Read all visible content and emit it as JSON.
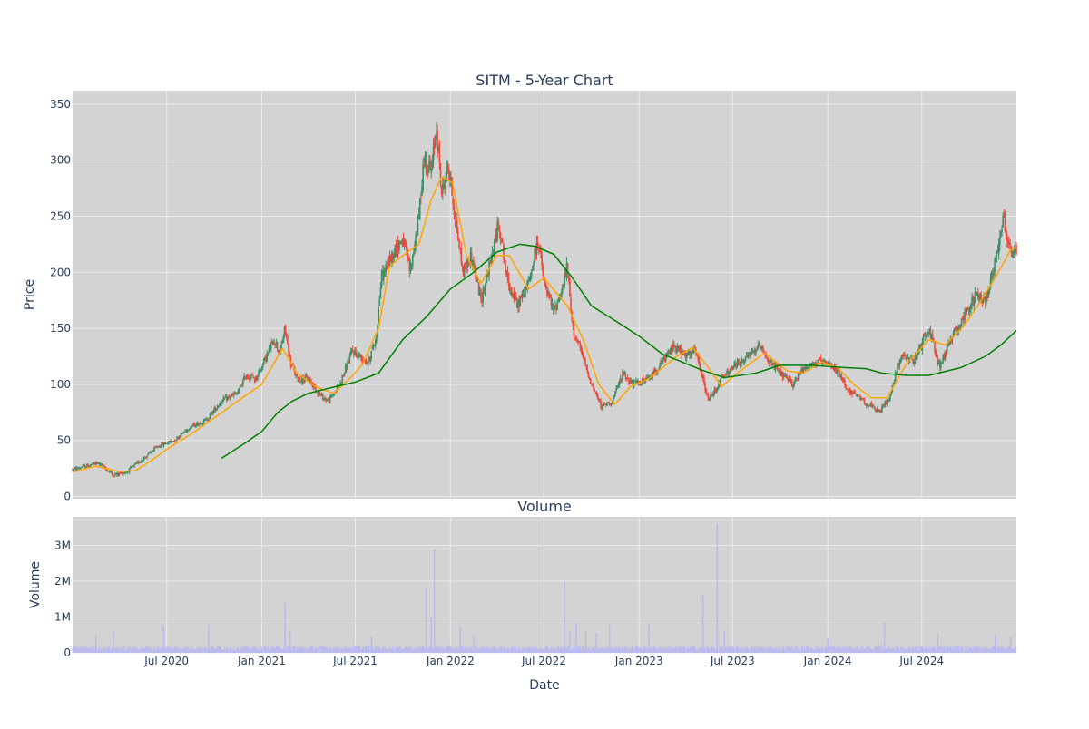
{
  "colors": {
    "page_bg": "#ffffff",
    "plot_bg": "#d3d3d3",
    "grid": "#ebebeb",
    "text": "#2a3f5f",
    "candle_up": "#3d8f68",
    "candle_down": "#ef4a3c",
    "ma_short": "#ffa500",
    "ma_long": "#008000",
    "volume": "#b8b8f0"
  },
  "chart_data": [
    {
      "type": "candlestick",
      "title": "SITM - 5-Year Chart",
      "ylabel": "Price",
      "xlabel": "",
      "ylim": [
        -2,
        362
      ],
      "yticks": [
        0,
        50,
        100,
        150,
        200,
        250,
        300,
        350
      ],
      "xlim": [
        "2020-01-01",
        "2024-12-31"
      ],
      "xticks": [
        "2020-07-01",
        "2021-01-01",
        "2021-07-01",
        "2022-01-01",
        "2022-07-01",
        "2023-01-01",
        "2023-07-01",
        "2024-01-01",
        "2024-07-01"
      ],
      "grid": true,
      "legend": "none",
      "price_path": [
        [
          "2020-01-02",
          24
        ],
        [
          "2020-02-20",
          30
        ],
        [
          "2020-03-20",
          19
        ],
        [
          "2020-04-15",
          22
        ],
        [
          "2020-05-20",
          35
        ],
        [
          "2020-06-15",
          45
        ],
        [
          "2020-07-15",
          50
        ],
        [
          "2020-08-15",
          62
        ],
        [
          "2020-09-15",
          68
        ],
        [
          "2020-10-15",
          85
        ],
        [
          "2020-11-15",
          92
        ],
        [
          "2020-12-01",
          108
        ],
        [
          "2020-12-20",
          105
        ],
        [
          "2021-01-10",
          125
        ],
        [
          "2021-01-25",
          140
        ],
        [
          "2021-02-05",
          128
        ],
        [
          "2021-02-15",
          150
        ],
        [
          "2021-02-25",
          120
        ],
        [
          "2021-03-10",
          105
        ],
        [
          "2021-04-01",
          105
        ],
        [
          "2021-04-25",
          90
        ],
        [
          "2021-05-10",
          85
        ],
        [
          "2021-06-01",
          100
        ],
        [
          "2021-06-25",
          130
        ],
        [
          "2021-07-25",
          120
        ],
        [
          "2021-08-10",
          140
        ],
        [
          "2021-08-20",
          195
        ],
        [
          "2021-09-15",
          220
        ],
        [
          "2021-10-01",
          230
        ],
        [
          "2021-10-15",
          200
        ],
        [
          "2021-11-01",
          250
        ],
        [
          "2021-11-10",
          300
        ],
        [
          "2021-11-25",
          290
        ],
        [
          "2021-12-05",
          330
        ],
        [
          "2021-12-15",
          270
        ],
        [
          "2021-12-28",
          295
        ],
        [
          "2022-01-10",
          250
        ],
        [
          "2022-01-25",
          200
        ],
        [
          "2022-02-10",
          215
        ],
        [
          "2022-03-01",
          175
        ],
        [
          "2022-03-20",
          210
        ],
        [
          "2022-04-05",
          245
        ],
        [
          "2022-04-20",
          195
        ],
        [
          "2022-05-10",
          170
        ],
        [
          "2022-06-01",
          190
        ],
        [
          "2022-06-20",
          230
        ],
        [
          "2022-07-01",
          190
        ],
        [
          "2022-07-20",
          165
        ],
        [
          "2022-08-05",
          185
        ],
        [
          "2022-08-15",
          205
        ],
        [
          "2022-08-25",
          150
        ],
        [
          "2022-09-10",
          130
        ],
        [
          "2022-10-01",
          100
        ],
        [
          "2022-10-20",
          80
        ],
        [
          "2022-11-10",
          85
        ],
        [
          "2022-12-01",
          110
        ],
        [
          "2022-12-20",
          100
        ],
        [
          "2023-01-20",
          105
        ],
        [
          "2023-02-15",
          120
        ],
        [
          "2023-03-10",
          135
        ],
        [
          "2023-04-01",
          125
        ],
        [
          "2023-04-20",
          130
        ],
        [
          "2023-05-15",
          85
        ],
        [
          "2023-06-10",
          105
        ],
        [
          "2023-07-01",
          115
        ],
        [
          "2023-08-01",
          125
        ],
        [
          "2023-08-25",
          135
        ],
        [
          "2023-09-10",
          120
        ],
        [
          "2023-10-01",
          110
        ],
        [
          "2023-10-25",
          100
        ],
        [
          "2023-11-15",
          115
        ],
        [
          "2023-12-15",
          120
        ],
        [
          "2024-01-15",
          115
        ],
        [
          "2024-02-10",
          95
        ],
        [
          "2024-03-10",
          85
        ],
        [
          "2024-04-10",
          75
        ],
        [
          "2024-05-01",
          90
        ],
        [
          "2024-05-20",
          125
        ],
        [
          "2024-06-15",
          120
        ],
        [
          "2024-07-15",
          150
        ],
        [
          "2024-08-05",
          115
        ],
        [
          "2024-08-25",
          140
        ],
        [
          "2024-09-20",
          160
        ],
        [
          "2024-10-15",
          180
        ],
        [
          "2024-11-01",
          175
        ],
        [
          "2024-11-20",
          210
        ],
        [
          "2024-12-05",
          250
        ],
        [
          "2024-12-15",
          225
        ],
        [
          "2024-12-31",
          215
        ]
      ],
      "series": [
        {
          "type": "line",
          "color": "#ffa500",
          "points": [
            [
              "2020-01-02",
              22
            ],
            [
              "2020-02-15",
              27
            ],
            [
              "2020-04-01",
              22
            ],
            [
              "2020-05-01",
              23
            ],
            [
              "2020-06-01",
              32
            ],
            [
              "2020-07-01",
              42
            ],
            [
              "2020-08-15",
              55
            ],
            [
              "2020-10-01",
              70
            ],
            [
              "2020-11-15",
              85
            ],
            [
              "2021-01-01",
              100
            ],
            [
              "2021-02-10",
              132
            ],
            [
              "2021-03-10",
              110
            ],
            [
              "2021-04-15",
              98
            ],
            [
              "2021-05-20",
              92
            ],
            [
              "2021-06-20",
              105
            ],
            [
              "2021-07-15",
              118
            ],
            [
              "2021-08-15",
              150
            ],
            [
              "2021-09-05",
              205
            ],
            [
              "2021-10-01",
              215
            ],
            [
              "2021-11-01",
              225
            ],
            [
              "2021-11-25",
              265
            ],
            [
              "2021-12-15",
              285
            ],
            [
              "2022-01-05",
              280
            ],
            [
              "2022-02-01",
              215
            ],
            [
              "2022-03-01",
              190
            ],
            [
              "2022-04-01",
              215
            ],
            [
              "2022-04-25",
              215
            ],
            [
              "2022-06-01",
              185
            ],
            [
              "2022-07-01",
              195
            ],
            [
              "2022-08-15",
              170
            ],
            [
              "2022-09-15",
              140
            ],
            [
              "2022-10-15",
              100
            ],
            [
              "2022-11-15",
              82
            ],
            [
              "2022-12-15",
              98
            ],
            [
              "2023-01-20",
              105
            ],
            [
              "2023-03-15",
              125
            ],
            [
              "2023-04-15",
              133
            ],
            [
              "2023-05-15",
              115
            ],
            [
              "2023-06-10",
              98
            ],
            [
              "2023-07-15",
              112
            ],
            [
              "2023-09-01",
              128
            ],
            [
              "2023-10-15",
              112
            ],
            [
              "2023-11-15",
              110
            ],
            [
              "2023-12-20",
              120
            ],
            [
              "2024-01-20",
              115
            ],
            [
              "2024-02-20",
              100
            ],
            [
              "2024-03-25",
              88
            ],
            [
              "2024-04-25",
              88
            ],
            [
              "2024-06-01",
              118
            ],
            [
              "2024-07-15",
              140
            ],
            [
              "2024-08-15",
              135
            ],
            [
              "2024-09-20",
              152
            ],
            [
              "2024-10-20",
              172
            ],
            [
              "2024-11-20",
              195
            ],
            [
              "2024-12-20",
              220
            ],
            [
              "2024-12-31",
              222
            ]
          ]
        },
        {
          "type": "line",
          "color": "#008000",
          "points": [
            [
              "2020-10-15",
              34
            ],
            [
              "2020-12-01",
              48
            ],
            [
              "2021-01-01",
              58
            ],
            [
              "2021-02-01",
              75
            ],
            [
              "2021-03-01",
              85
            ],
            [
              "2021-04-01",
              92
            ],
            [
              "2021-05-15",
              97
            ],
            [
              "2021-07-01",
              102
            ],
            [
              "2021-08-15",
              110
            ],
            [
              "2021-10-01",
              140
            ],
            [
              "2021-11-15",
              160
            ],
            [
              "2022-01-01",
              185
            ],
            [
              "2022-02-15",
              200
            ],
            [
              "2022-04-01",
              218
            ],
            [
              "2022-05-15",
              225
            ],
            [
              "2022-06-15",
              223
            ],
            [
              "2022-07-20",
              216
            ],
            [
              "2022-08-25",
              195
            ],
            [
              "2022-10-01",
              170
            ],
            [
              "2022-11-15",
              157
            ],
            [
              "2023-01-01",
              143
            ],
            [
              "2023-02-15",
              127
            ],
            [
              "2023-03-25",
              120
            ],
            [
              "2023-05-01",
              113
            ],
            [
              "2023-06-15",
              106
            ],
            [
              "2023-08-15",
              110
            ],
            [
              "2023-10-01",
              117
            ],
            [
              "2023-12-01",
              117
            ],
            [
              "2024-02-01",
              115
            ],
            [
              "2024-03-15",
              114
            ],
            [
              "2024-04-15",
              110
            ],
            [
              "2024-06-01",
              108
            ],
            [
              "2024-07-15",
              108
            ],
            [
              "2024-09-15",
              115
            ],
            [
              "2024-11-01",
              125
            ],
            [
              "2024-12-01",
              135
            ],
            [
              "2024-12-31",
              148
            ]
          ]
        }
      ]
    },
    {
      "type": "bar",
      "title": "Volume",
      "ylabel": "Volume",
      "xlabel": "Date",
      "ylim": [
        0,
        3800000
      ],
      "yticks": [
        0,
        1000000,
        2000000,
        3000000
      ],
      "ytick_labels": [
        "0",
        "1M",
        "2M",
        "3M"
      ],
      "xlim": [
        "2020-01-01",
        "2024-12-31"
      ],
      "xticks": [
        "2020-07-01",
        "2021-01-01",
        "2021-07-01",
        "2022-01-01",
        "2022-07-01",
        "2023-01-01",
        "2023-07-01",
        "2024-01-01",
        "2024-07-01"
      ],
      "xtick_labels": [
        "Jul 2020",
        "Jan 2021",
        "Jul 2021",
        "Jan 2022",
        "Jul 2022",
        "Jan 2023",
        "Jul 2023",
        "Jan 2024",
        "Jul 2024"
      ],
      "grid": true,
      "baseline": 150000,
      "spikes": [
        [
          "2020-02-15",
          500000
        ],
        [
          "2020-03-20",
          600000
        ],
        [
          "2020-06-25",
          750000
        ],
        [
          "2020-09-20",
          800000
        ],
        [
          "2021-02-15",
          1400000
        ],
        [
          "2021-02-25",
          600000
        ],
        [
          "2021-08-01",
          450000
        ],
        [
          "2021-11-15",
          1800000
        ],
        [
          "2021-11-25",
          1000000
        ],
        [
          "2021-12-01",
          2900000
        ],
        [
          "2022-01-20",
          750000
        ],
        [
          "2022-02-15",
          500000
        ],
        [
          "2022-08-10",
          2000000
        ],
        [
          "2022-08-20",
          600000
        ],
        [
          "2022-09-01",
          850000
        ],
        [
          "2022-09-20",
          600000
        ],
        [
          "2022-10-10",
          550000
        ],
        [
          "2022-11-05",
          800000
        ],
        [
          "2023-01-20",
          800000
        ],
        [
          "2023-05-05",
          1600000
        ],
        [
          "2023-06-01",
          3600000
        ],
        [
          "2023-06-15",
          600000
        ],
        [
          "2024-01-01",
          400000
        ],
        [
          "2024-04-20",
          850000
        ],
        [
          "2024-08-01",
          550000
        ],
        [
          "2024-11-20",
          500000
        ],
        [
          "2024-12-20",
          450000
        ]
      ]
    }
  ]
}
